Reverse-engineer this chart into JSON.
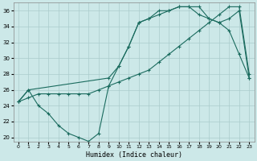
{
  "xlabel": "Humidex (Indice chaleur)",
  "bg_color": "#cce8e8",
  "grid_color": "#aacccc",
  "line_color": "#1a6b5e",
  "xlim": [
    -0.5,
    23.5
  ],
  "ylim": [
    19.5,
    37
  ],
  "yticks": [
    20,
    22,
    24,
    26,
    28,
    30,
    32,
    34,
    36
  ],
  "xticks": [
    0,
    1,
    2,
    3,
    4,
    5,
    6,
    7,
    8,
    9,
    10,
    11,
    12,
    13,
    14,
    15,
    16,
    17,
    18,
    19,
    20,
    21,
    22,
    23
  ],
  "line1_x": [
    0,
    1,
    2,
    3,
    4,
    5,
    6,
    7,
    8,
    9,
    10,
    11,
    12,
    13,
    14,
    15,
    16,
    17,
    18,
    19,
    20,
    21,
    22,
    23
  ],
  "line1_y": [
    24.5,
    26.0,
    24.0,
    23.0,
    21.5,
    20.5,
    20.0,
    19.5,
    20.5,
    26.5,
    29.0,
    31.5,
    34.5,
    35.0,
    36.0,
    36.0,
    36.5,
    36.5,
    35.5,
    35.0,
    34.5,
    33.5,
    30.5,
    27.5
  ],
  "line2_x": [
    0,
    1,
    2,
    3,
    4,
    5,
    6,
    7,
    8,
    9,
    10,
    11,
    12,
    13,
    14,
    15,
    16,
    17,
    18,
    19,
    20,
    21,
    22,
    23
  ],
  "line2_y": [
    24.5,
    25.0,
    25.5,
    25.5,
    25.5,
    25.5,
    25.5,
    25.5,
    26.0,
    26.5,
    27.0,
    27.5,
    28.0,
    28.5,
    29.5,
    30.5,
    31.5,
    32.5,
    33.5,
    34.5,
    35.5,
    36.5,
    36.5,
    28.0
  ],
  "line3_x": [
    0,
    1,
    9,
    10,
    11,
    12,
    13,
    14,
    15,
    16,
    17,
    18,
    19,
    20,
    21,
    22,
    23
  ],
  "line3_y": [
    24.5,
    26.0,
    27.5,
    29.0,
    31.5,
    34.5,
    35.0,
    35.5,
    36.0,
    36.5,
    36.5,
    36.5,
    35.0,
    34.5,
    35.0,
    36.0,
    27.5
  ]
}
